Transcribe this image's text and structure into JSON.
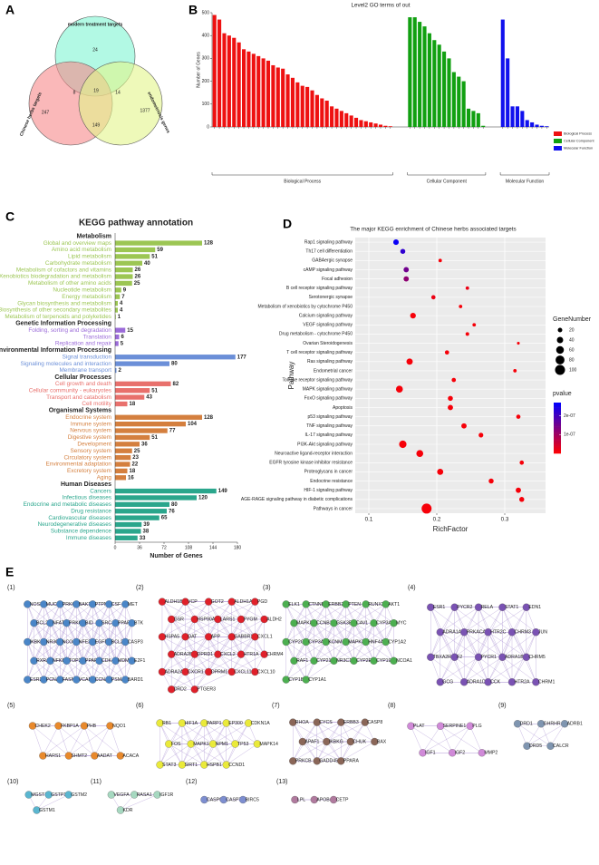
{
  "venn": {
    "label": "A",
    "sets": [
      {
        "name": "modern treatment targets",
        "color": "#7ff5d2"
      },
      {
        "name": "Chinese herbs targets",
        "color": "#f7898b"
      },
      {
        "name": "endometriosis genes",
        "color": "#e3f58a"
      }
    ],
    "regions": [
      24,
      8,
      19,
      14,
      247,
      1377,
      149
    ]
  },
  "chart_data": [
    {
      "type": "bar",
      "panel": "B",
      "title": "Level2 GO terms of out",
      "y_label": "Number of Genes",
      "ylim": [
        0,
        500
      ],
      "yticks": [
        0,
        100,
        200,
        300,
        400,
        500
      ],
      "series": [
        {
          "name": "Biological Process",
          "color": "#ee1111",
          "values": [
            490,
            470,
            410,
            400,
            390,
            370,
            340,
            330,
            320,
            310,
            300,
            290,
            270,
            260,
            255,
            230,
            215,
            195,
            180,
            175,
            160,
            140,
            125,
            115,
            90,
            80,
            70,
            60,
            50,
            40,
            30,
            25,
            20,
            15,
            10,
            5,
            3
          ]
        },
        {
          "name": "Cellular Component",
          "color": "#11a011",
          "values": [
            480,
            480,
            460,
            440,
            410,
            380,
            360,
            330,
            300,
            240,
            220,
            200,
            80,
            70,
            60,
            5
          ]
        },
        {
          "name": "Molecular Function",
          "color": "#1111ee",
          "values": [
            470,
            300,
            90,
            90,
            70,
            30,
            20,
            10,
            5,
            3
          ]
        }
      ]
    },
    {
      "type": "barh",
      "panel": "C",
      "title": "KEGG pathway annotation",
      "x_label": "Number of Genes",
      "xlim": [
        0,
        180
      ],
      "xticks": [
        0,
        36,
        72,
        108,
        144,
        180
      ],
      "groups": [
        {
          "name": "Metabolism",
          "color": "#9cc653",
          "categories": [
            "Global and overview maps",
            "Amino acid metabolism",
            "Lipid metabolism",
            "Carbohydrate metabolism",
            "Metabolism of cofactors and vitamins",
            "Xenobiotics biodegradation and metabolism",
            "Metabolism of other amino acids",
            "Nucleotide metabolism",
            "Energy metabolism",
            "Glycan biosynthesis and metabolism",
            "Biosynthesis of other secondary metabolites",
            "Metabolism of terpenoids and polyketides"
          ],
          "values": [
            128,
            59,
            51,
            40,
            26,
            26,
            25,
            9,
            7,
            4,
            4,
            1
          ]
        },
        {
          "name": "Genetic Information Processing",
          "color": "#9b6bd8",
          "categories": [
            "Folding, sorting and degradation",
            "Translation",
            "Replication and repair"
          ],
          "values": [
            15,
            6,
            5
          ]
        },
        {
          "name": "Environmental Information Processing",
          "color": "#6b8fd8",
          "categories": [
            "Signal transduction",
            "Signaling molecules and interaction",
            "Membrane transport"
          ],
          "values": [
            177,
            80,
            2
          ]
        },
        {
          "name": "Cellular Processes",
          "color": "#e8706c",
          "categories": [
            "Cell growth and death",
            "Cellular community - eukaryotes",
            "Transport and catabolism",
            "Cell motility"
          ],
          "values": [
            82,
            51,
            43,
            18
          ]
        },
        {
          "name": "Organismal Systems",
          "color": "#d47f3e",
          "categories": [
            "Endocrine system",
            "Immune system",
            "Nervous system",
            "Digestive system",
            "Development",
            "Sensory system",
            "Circulatory system",
            "Environmental adaptation",
            "Excretory system",
            "Aging"
          ],
          "values": [
            128,
            104,
            77,
            51,
            36,
            25,
            23,
            22,
            18,
            16
          ]
        },
        {
          "name": "Human Diseases",
          "color": "#2aa68c",
          "categories": [
            "Cancers",
            "Infectious diseases",
            "Endocrine and metabolic diseases",
            "Drug resistance",
            "Cardiovascular diseases",
            "Neurodegenerative diseases",
            "Substance dependence",
            "Immune diseases"
          ],
          "values": [
            149,
            120,
            80,
            76,
            65,
            39,
            38,
            33
          ]
        }
      ]
    },
    {
      "type": "scatter",
      "panel": "D",
      "title": "The major KEGG enrichment of Chinese herbs associated targets",
      "x_label": "RichFactor",
      "y_label": "Pathway",
      "xlim": [
        0.08,
        0.36
      ],
      "xticks": [
        0.1,
        0.2,
        0.3
      ],
      "grid": true,
      "categories": [
        "Rap1 signaling pathway",
        "Th17 cell differentiation",
        "GABAergic synapse",
        "cAMP signaling pathway",
        "Focal adhesion",
        "B cell receptor signaling pathway",
        "Serotonergic synapse",
        "Metabolism of xenobiotics by cytochrome P450",
        "Calcium signaling pathway",
        "VEGF signaling pathway",
        "Drug metabolism - cytochrome P450",
        "Ovarian Steroidogenesis",
        "T cell receptor signaling pathway",
        "Ras signaling pathway",
        "Endometrial cancer",
        "Toll-like receptor signaling pathway",
        "MAPK signaling pathway",
        "FoxO signaling pathway",
        "Apoptosis",
        "p53 signaling pathway",
        "TNF signaling pathway",
        "IL-17 signaling pathway",
        "PI3K-Akt signaling pathway",
        "Neuroactive ligand-receptor interaction",
        "EGFR tyrosine kinase inhibitor resistance",
        "Proteoglycans in cancer",
        "Endocrine resistance",
        "HIF-1 signaling pathway",
        "AGE-RAGE signaling pathway in diabetic complications",
        "Pathways in cancer"
      ],
      "x": [
        0.14,
        0.15,
        0.205,
        0.155,
        0.155,
        0.245,
        0.195,
        0.235,
        0.165,
        0.255,
        0.245,
        0.32,
        0.215,
        0.16,
        0.315,
        0.225,
        0.145,
        0.22,
        0.22,
        0.32,
        0.24,
        0.265,
        0.15,
        0.175,
        0.325,
        0.205,
        0.28,
        0.32,
        0.325,
        0.185
      ],
      "sizes": [
        30,
        25,
        12,
        28,
        28,
        12,
        18,
        12,
        32,
        12,
        13,
        8,
        18,
        40,
        12,
        18,
        48,
        25,
        28,
        18,
        28,
        22,
        55,
        48,
        18,
        38,
        25,
        28,
        25,
        100
      ],
      "pvalues": [
        2.6e-07,
        2.2e-07,
        1e-08,
        1.5e-07,
        1.2e-07,
        2e-08,
        2e-08,
        1e-08,
        1e-08,
        1e-08,
        1e-08,
        1e-08,
        1e-08,
        1e-08,
        1e-08,
        1e-08,
        1e-08,
        1e-08,
        1e-08,
        1e-08,
        1e-08,
        1e-08,
        1e-08,
        1e-08,
        1e-08,
        1e-08,
        1e-08,
        1e-08,
        1e-08,
        1e-08
      ],
      "size_title": "GeneNumber",
      "size_legend": [
        20,
        40,
        60,
        80,
        100
      ],
      "color_title": "pvalue",
      "clim": [
        0,
        2.7e-07
      ],
      "cticks": [
        {
          "value": 2e-07,
          "label": "2e-07"
        },
        {
          "value": 1e-07,
          "label": "1e-07"
        }
      ]
    }
  ],
  "network": {
    "label": "E",
    "clusters": [
      {
        "label": "(1)",
        "color": "#4a86c8",
        "nodes": [
          "NOS3",
          "MUC1",
          "PRKCQ",
          "BAK1",
          "PTPN6",
          "CSF",
          "MET",
          "BCL2",
          "NFATC1",
          "PRKCA",
          "BID",
          "SRC",
          "PPARG",
          "BTK",
          "IKBKB",
          "NR3C2",
          "NCOA2",
          "NFE2L2",
          "EGFR",
          "BCL2L1",
          "CASP3",
          "RXRA",
          "NFKB1",
          "TOP2A",
          "PPARD",
          "CDK4",
          "MDM2",
          "E2F1",
          "ESR2",
          "PCNA",
          "FASN",
          "VCAM1",
          "CCNA2",
          "PSMA1",
          "BARD1"
        ]
      },
      {
        "label": "(2)",
        "color": "#e0202a",
        "nodes": [
          "ALDH1B1",
          "VCP",
          "GOT2",
          "ALDH1A1",
          "PGD",
          "GSR",
          "HSP90AB1",
          "LARS1",
          "PYGM",
          "ALDH2",
          "HSPA5",
          "OAT",
          "APP",
          "GABBR1",
          "CXCL1",
          "ADRA2B",
          "OPRD1",
          "CXCL2",
          "HTR1A",
          "CHRM4",
          "ADRA2A",
          "CXCR1",
          "OPRM1",
          "CXCL11",
          "CXCL10",
          "DRD2",
          "PTGER3"
        ]
      },
      {
        "label": "(3)",
        "color": "#4caf50",
        "nodes": [
          "ELK1",
          "CTNNB1",
          "ERBB2",
          "PTEN",
          "RUNX2",
          "AKT1",
          "MAPK8",
          "CCNB1",
          "GSK3B",
          "CAV1",
          "CYP3A43",
          "MYC",
          "CYP2C8",
          "CYP3A4",
          "KCNMA1",
          "MAPK3",
          "HNF4A",
          "CYP1A2",
          "RAF1",
          "CYP21A2",
          "NR3C1",
          "CYP2E1",
          "CYP19A1",
          "NCOA1",
          "CYP1B1",
          "CYP1A1"
        ]
      },
      {
        "label": "(4)",
        "color": "#7a52b3",
        "nodes": [
          "ESR1",
          "PYCR2",
          "RELA",
          "STAT1",
          "EDN1",
          "ADRA1A",
          "PRKACA",
          "HTR2C",
          "CHRM3",
          "JUN",
          "TBXA2R",
          "F2",
          "PYCR1",
          "ADRA1B",
          "CHRM5",
          "GCG",
          "ADRA1D",
          "CCK",
          "HTR2A",
          "CHRM1"
        ]
      },
      {
        "label": "(5)",
        "color": "#e8892c",
        "nodes": [
          "CHEK2",
          "FKBP1A",
          "PHB",
          "NQO1",
          "HARS1",
          "SHMT2",
          "AADAT",
          "ACACA"
        ]
      },
      {
        "label": "(6)",
        "color": "#eaea3a",
        "nodes": [
          "RB1",
          "HIF1A",
          "PARP1",
          "EP300",
          "CDKN1A",
          "FOS",
          "MAPK1",
          "NPM1",
          "TP53",
          "MAPK14",
          "STAT3",
          "SIRT1",
          "HSPB1",
          "CCND1"
        ]
      },
      {
        "label": "(7)",
        "color": "#8a6658",
        "nodes": [
          "RHOA",
          "CYCS",
          "ERBB3",
          "CASP8",
          "APAF1",
          "IKBKG",
          "CHUK",
          "BAX",
          "PRKCB",
          "GADD45A",
          "PPARA"
        ]
      },
      {
        "label": "(8)",
        "color": "#d08ad8",
        "nodes": [
          "PLAT",
          "SERPINE1",
          "PLG",
          "IGF1",
          "IGF2",
          "MMP2"
        ]
      },
      {
        "label": "(9)",
        "color": "#7f95b0",
        "nodes": [
          "DRD1",
          "GHRHR",
          "ADRB1",
          "DRD5",
          "CALCR"
        ]
      },
      {
        "label": "(10)",
        "color": "#5ab6d0",
        "nodes": [
          "MGST1",
          "GSTP1",
          "GSTM2",
          "GSTM1"
        ]
      },
      {
        "label": "(11)",
        "color": "#a6d8c0",
        "nodes": [
          "VEGFA",
          "RASA1",
          "IGF1R",
          "KDR"
        ]
      },
      {
        "label": "(12)",
        "color": "#7d8ed0",
        "nodes": [
          "CASP9",
          "CASP7",
          "BIRC5"
        ]
      },
      {
        "label": "(13)",
        "color": "#b07a9e",
        "nodes": [
          "LPL",
          "APOB",
          "CETP"
        ]
      }
    ]
  }
}
